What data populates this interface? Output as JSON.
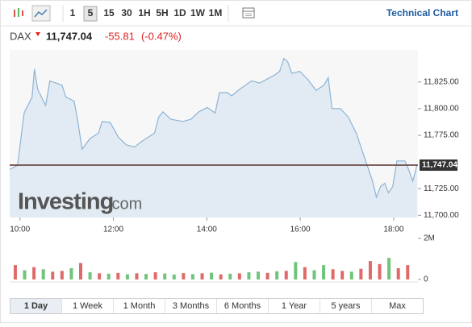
{
  "toolbar": {
    "intervals": [
      "1",
      "5",
      "15",
      "30",
      "1H",
      "5H",
      "1D",
      "1W",
      "1M"
    ],
    "active_interval_index": 1,
    "technical_chart": "Technical Chart"
  },
  "quote": {
    "symbol": "DAX",
    "last": "11,747.04",
    "change": "-55.81",
    "change_pct": "(-0.47%)"
  },
  "watermark": {
    "brand": "Investing",
    "suffix": ".com"
  },
  "chart_data": [
    {
      "type": "area",
      "color": "#8db4d6",
      "fill": "#e2ebf3",
      "x": [
        9.78,
        9.95,
        10.09,
        10.17,
        10.26,
        10.31,
        10.38,
        10.55,
        10.64,
        10.9,
        10.98,
        11.16,
        11.24,
        11.33,
        11.5,
        11.68,
        11.76,
        11.93,
        12.11,
        12.28,
        12.45,
        12.63,
        12.88,
        12.97,
        13.06,
        13.23,
        13.49,
        13.66,
        13.83,
        14.01,
        14.18,
        14.27,
        14.44,
        14.53,
        14.7,
        14.96,
        15.13,
        15.3,
        15.47,
        15.56,
        15.65,
        15.73,
        15.82,
        15.99,
        16.17,
        16.34,
        16.51,
        16.6,
        16.68,
        16.86,
        17.03,
        17.2,
        17.37,
        17.55,
        17.63,
        17.72,
        17.81,
        17.89,
        17.98,
        18.07,
        18.24,
        18.32,
        18.41,
        18.5
      ],
      "values": [
        11743,
        11747,
        11796,
        11803,
        11811,
        11837,
        11818,
        11803,
        11826,
        11822,
        11811,
        11807,
        11788,
        11762,
        11772,
        11777,
        11788,
        11787,
        11773,
        11766,
        11764,
        11770,
        11777,
        11792,
        11797,
        11790,
        11788,
        11790,
        11797,
        11801,
        11796,
        11815,
        11815,
        11812,
        11818,
        11826,
        11824,
        11828,
        11832,
        11835,
        11847,
        11844,
        11833,
        11835,
        11827,
        11817,
        11822,
        11829,
        11800,
        11800,
        11792,
        11777,
        11755,
        11732,
        11717,
        11727,
        11730,
        11721,
        11727,
        11751,
        11751,
        11743,
        11732,
        11747
      ],
      "last_value": 11747.04,
      "last_label": "11,747.04",
      "last_color": "#5b2f2f",
      "xlim": [
        9.78,
        18.52
      ],
      "xticks": [
        {
          "value": 10,
          "label": "10:00"
        },
        {
          "value": 12,
          "label": "12:00"
        },
        {
          "value": 14,
          "label": "14:00"
        },
        {
          "value": 16,
          "label": "16:00"
        },
        {
          "value": 18,
          "label": "18:00"
        }
      ],
      "ylim": [
        11698,
        11855
      ],
      "yticks": [
        {
          "value": 11700,
          "label": "11,700.00"
        },
        {
          "value": 11725,
          "label": "11,725.00"
        },
        {
          "value": 11775,
          "label": "11,775.00"
        },
        {
          "value": 11800,
          "label": "11,800.00"
        },
        {
          "value": 11825,
          "label": "11,825.00"
        }
      ]
    },
    {
      "type": "bar",
      "x": [
        9.9,
        10.1,
        10.3,
        10.5,
        10.7,
        10.9,
        11.1,
        11.3,
        11.5,
        11.7,
        11.9,
        12.1,
        12.3,
        12.5,
        12.7,
        12.9,
        13.1,
        13.3,
        13.5,
        13.7,
        13.9,
        14.1,
        14.3,
        14.5,
        14.7,
        14.9,
        15.1,
        15.3,
        15.5,
        15.7,
        15.9,
        16.1,
        16.3,
        16.5,
        16.7,
        16.9,
        17.1,
        17.3,
        17.5,
        17.7,
        17.9,
        18.1,
        18.3
      ],
      "values": [
        700000,
        450000,
        600000,
        500000,
        380000,
        420000,
        550000,
        800000,
        350000,
        300000,
        280000,
        320000,
        250000,
        300000,
        270000,
        350000,
        290000,
        240000,
        310000,
        260000,
        300000,
        330000,
        250000,
        280000,
        300000,
        350000,
        380000,
        320000,
        400000,
        420000,
        850000,
        600000,
        450000,
        700000,
        500000,
        420000,
        380000,
        520000,
        900000,
        750000,
        1050000,
        550000,
        700000
      ],
      "colors": [
        "#e06a6a",
        "#70c47c",
        "#e06a6a",
        "#70c47c",
        "#e06a6a",
        "#e06a6a",
        "#70c47c",
        "#e06a6a",
        "#70c47c",
        "#e06a6a",
        "#70c47c",
        "#e06a6a",
        "#70c47c",
        "#e06a6a",
        "#70c47c",
        "#e06a6a",
        "#70c47c",
        "#70c47c",
        "#e06a6a",
        "#70c47c",
        "#e06a6a",
        "#70c47c",
        "#e06a6a",
        "#70c47c",
        "#e06a6a",
        "#70c47c",
        "#70c47c",
        "#e06a6a",
        "#70c47c",
        "#e06a6a",
        "#70c47c",
        "#e06a6a",
        "#70c47c",
        "#70c47c",
        "#e06a6a",
        "#e06a6a",
        "#70c47c",
        "#e06a6a",
        "#e06a6a",
        "#e06a6a",
        "#70c47c",
        "#e06a6a",
        "#e06a6a"
      ],
      "xlim": [
        9.78,
        18.52
      ],
      "ylim": [
        0,
        2000000
      ],
      "yticks": [
        0,
        {
          "value": 2000000,
          "label": "2M"
        }
      ]
    }
  ],
  "ranges": {
    "items": [
      "1 Day",
      "1 Week",
      "1 Month",
      "3 Months",
      "6 Months",
      "1 Year",
      "5 years",
      "Max"
    ],
    "active_index": 0
  }
}
